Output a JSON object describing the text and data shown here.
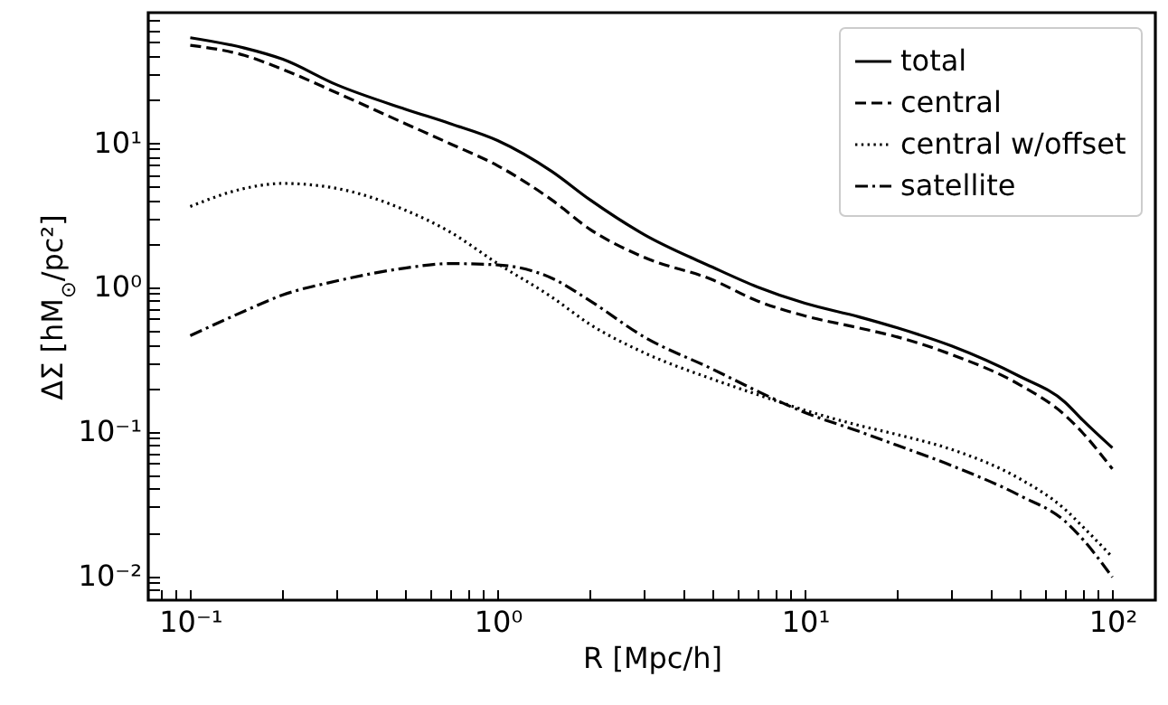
{
  "chart_data": {
    "type": "line",
    "xlabel": "R [Mpc/h]",
    "ylabel": "ΔΣ [hM$_{⊙}$/pc²]",
    "log": "xy",
    "xlim": [
      0.073,
      138
    ],
    "ylim": [
      0.0068,
      79
    ],
    "x": [
      0.1,
      0.15,
      0.2,
      0.3,
      0.5,
      0.7,
      1,
      1.5,
      2,
      3,
      5,
      7,
      10,
      15,
      20,
      30,
      50,
      70,
      80,
      100
    ],
    "xticks": [
      {
        "value": 0.08,
        "label": null
      },
      {
        "value": 0.09,
        "label": null
      },
      {
        "value": 0.1,
        "label": "10⁻¹"
      },
      {
        "value": 0.2,
        "label": null
      },
      {
        "value": 0.3,
        "label": null
      },
      {
        "value": 0.4,
        "label": null
      },
      {
        "value": 0.5,
        "label": null
      },
      {
        "value": 0.6,
        "label": null
      },
      {
        "value": 0.7,
        "label": null
      },
      {
        "value": 0.8,
        "label": null
      },
      {
        "value": 0.9,
        "label": null
      },
      {
        "value": 1,
        "label": "10⁰"
      },
      {
        "value": 2,
        "label": null
      },
      {
        "value": 3,
        "label": null
      },
      {
        "value": 4,
        "label": null
      },
      {
        "value": 5,
        "label": null
      },
      {
        "value": 6,
        "label": null
      },
      {
        "value": 7,
        "label": null
      },
      {
        "value": 8,
        "label": null
      },
      {
        "value": 9,
        "label": null
      },
      {
        "value": 10,
        "label": "10¹"
      },
      {
        "value": 20,
        "label": null
      },
      {
        "value": 30,
        "label": null
      },
      {
        "value": 40,
        "label": null
      },
      {
        "value": 50,
        "label": null
      },
      {
        "value": 60,
        "label": null
      },
      {
        "value": 70,
        "label": null
      },
      {
        "value": 80,
        "label": null
      },
      {
        "value": 90,
        "label": null
      },
      {
        "value": 100,
        "label": "10²"
      }
    ],
    "yticks": [
      {
        "value": 0.008,
        "label": null
      },
      {
        "value": 0.009,
        "label": null
      },
      {
        "value": 0.01,
        "label": "10⁻²"
      },
      {
        "value": 0.02,
        "label": null
      },
      {
        "value": 0.03,
        "label": null
      },
      {
        "value": 0.04,
        "label": null
      },
      {
        "value": 0.05,
        "label": null
      },
      {
        "value": 0.06,
        "label": null
      },
      {
        "value": 0.07,
        "label": null
      },
      {
        "value": 0.08,
        "label": null
      },
      {
        "value": 0.09,
        "label": null
      },
      {
        "value": 0.1,
        "label": "10⁻¹"
      },
      {
        "value": 0.2,
        "label": null
      },
      {
        "value": 0.3,
        "label": null
      },
      {
        "value": 0.4,
        "label": null
      },
      {
        "value": 0.5,
        "label": null
      },
      {
        "value": 0.6,
        "label": null
      },
      {
        "value": 0.7,
        "label": null
      },
      {
        "value": 0.8,
        "label": null
      },
      {
        "value": 0.9,
        "label": null
      },
      {
        "value": 1,
        "label": "10⁰"
      },
      {
        "value": 2,
        "label": null
      },
      {
        "value": 3,
        "label": null
      },
      {
        "value": 4,
        "label": null
      },
      {
        "value": 5,
        "label": null
      },
      {
        "value": 6,
        "label": null
      },
      {
        "value": 7,
        "label": null
      },
      {
        "value": 8,
        "label": null
      },
      {
        "value": 9,
        "label": null
      },
      {
        "value": 10,
        "label": "10¹"
      },
      {
        "value": 20,
        "label": null
      },
      {
        "value": 30,
        "label": null
      },
      {
        "value": 40,
        "label": null
      },
      {
        "value": 50,
        "label": null
      },
      {
        "value": 60,
        "label": null
      },
      {
        "value": 70,
        "label": null
      }
    ],
    "grid": false,
    "legend": "top right",
    "marker": "none",
    "series": [
      {
        "name": "total",
        "color": "#000000",
        "line_style": "solid",
        "values": [
          53,
          45,
          37.6,
          25,
          17,
          13.5,
          10.3,
          6.3,
          4.0,
          2.3,
          1.37,
          1.0,
          0.77,
          0.62,
          0.52,
          0.39,
          0.24,
          0.16,
          0.12,
          0.077
        ]
      },
      {
        "name": "central",
        "color": "#000000",
        "line_style": "dashed",
        "values": [
          47,
          40,
          32,
          22,
          13.5,
          9.8,
          6.9,
          4.0,
          2.5,
          1.6,
          1.12,
          0.8,
          0.63,
          0.52,
          0.45,
          0.34,
          0.21,
          0.13,
          0.098,
          0.055
        ]
      },
      {
        "name": "central w/offset",
        "color": "#000000",
        "line_style": "dotted",
        "values": [
          3.6,
          4.8,
          5.2,
          4.8,
          3.4,
          2.4,
          1.45,
          0.85,
          0.55,
          0.35,
          0.23,
          0.18,
          0.14,
          0.11,
          0.095,
          0.075,
          0.047,
          0.029,
          0.022,
          0.0135
        ]
      },
      {
        "name": "satellite",
        "color": "#000000",
        "line_style": "dashdot",
        "values": [
          0.46,
          0.68,
          0.88,
          1.1,
          1.35,
          1.45,
          1.42,
          1.15,
          0.8,
          0.45,
          0.27,
          0.19,
          0.135,
          0.1,
          0.08,
          0.058,
          0.036,
          0.024,
          0.018,
          0.0098
        ]
      }
    ]
  }
}
